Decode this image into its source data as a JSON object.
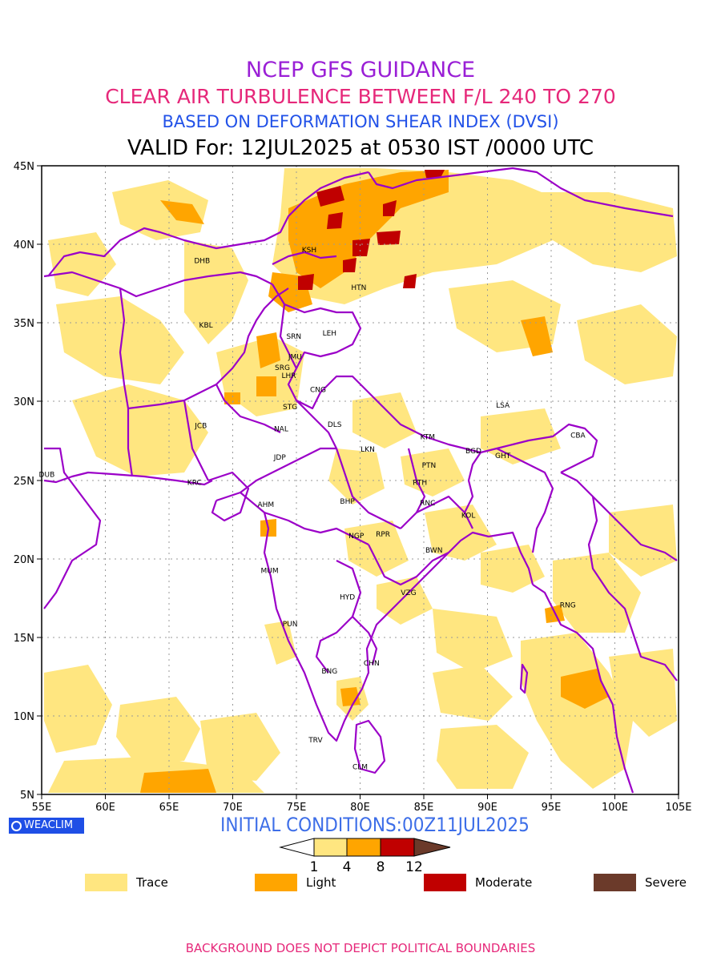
{
  "title": {
    "line1": "NCEP GFS GUIDANCE",
    "line2": "CLEAR AIR TURBULENCE BETWEEN F/L 240 TO 270",
    "line3": "BASED ON DEFORMATION SHEAR INDEX (DVSI)",
    "line4": "VALID For: 12JUL2025 at 0530 IST /0000 UTC"
  },
  "map": {
    "lon_range": [
      55,
      105
    ],
    "lat_range": [
      5,
      45
    ],
    "x_ticks": [
      "55E",
      "60E",
      "65E",
      "70E",
      "75E",
      "80E",
      "85E",
      "90E",
      "95E",
      "100E",
      "105E"
    ],
    "y_ticks": [
      "5N",
      "10N",
      "15N",
      "20N",
      "25N",
      "30N",
      "35N",
      "40N",
      "45N"
    ],
    "stations": [
      {
        "code": "KSH",
        "lon": 76.0,
        "lat": 39.5
      },
      {
        "code": "DHB",
        "lon": 67.6,
        "lat": 38.8
      },
      {
        "code": "HTN",
        "lon": 79.9,
        "lat": 37.1
      },
      {
        "code": "KBL",
        "lon": 67.9,
        "lat": 34.7
      },
      {
        "code": "LEH",
        "lon": 77.6,
        "lat": 34.2
      },
      {
        "code": "SRN",
        "lon": 74.8,
        "lat": 34.0
      },
      {
        "code": "JMU",
        "lon": 74.9,
        "lat": 32.7
      },
      {
        "code": "SRG",
        "lon": 73.9,
        "lat": 32.0
      },
      {
        "code": "LHR",
        "lon": 74.4,
        "lat": 31.5
      },
      {
        "code": "CNG",
        "lon": 76.7,
        "lat": 30.6
      },
      {
        "code": "LSA",
        "lon": 91.2,
        "lat": 29.6
      },
      {
        "code": "STG",
        "lon": 74.5,
        "lat": 29.5
      },
      {
        "code": "JCB",
        "lon": 67.5,
        "lat": 28.3
      },
      {
        "code": "NAL",
        "lon": 73.8,
        "lat": 28.1
      },
      {
        "code": "DLS",
        "lon": 78.0,
        "lat": 28.4
      },
      {
        "code": "KTM",
        "lon": 85.3,
        "lat": 27.6
      },
      {
        "code": "CBA",
        "lon": 97.1,
        "lat": 27.7
      },
      {
        "code": "LKN",
        "lon": 80.6,
        "lat": 26.8
      },
      {
        "code": "JDP",
        "lon": 73.7,
        "lat": 26.3
      },
      {
        "code": "BGD",
        "lon": 88.9,
        "lat": 26.7
      },
      {
        "code": "GHT",
        "lon": 91.2,
        "lat": 26.4
      },
      {
        "code": "PTN",
        "lon": 85.4,
        "lat": 25.8
      },
      {
        "code": "DUB",
        "lon": 55.4,
        "lat": 25.2
      },
      {
        "code": "KRC",
        "lon": 67.0,
        "lat": 24.7
      },
      {
        "code": "RTH",
        "lon": 84.7,
        "lat": 24.7
      },
      {
        "code": "AHM",
        "lon": 72.6,
        "lat": 23.3
      },
      {
        "code": "BHP",
        "lon": 79.0,
        "lat": 23.5
      },
      {
        "code": "RNC",
        "lon": 85.3,
        "lat": 23.4
      },
      {
        "code": "KOL",
        "lon": 88.5,
        "lat": 22.6
      },
      {
        "code": "NGP",
        "lon": 79.7,
        "lat": 21.3
      },
      {
        "code": "RPR",
        "lon": 81.8,
        "lat": 21.4
      },
      {
        "code": "BWN",
        "lon": 85.8,
        "lat": 20.4
      },
      {
        "code": "MUM",
        "lon": 72.9,
        "lat": 19.1
      },
      {
        "code": "HYD",
        "lon": 79.0,
        "lat": 17.4
      },
      {
        "code": "VZG",
        "lon": 83.8,
        "lat": 17.7
      },
      {
        "code": "RNG",
        "lon": 96.3,
        "lat": 16.9
      },
      {
        "code": "PUN",
        "lon": 74.5,
        "lat": 15.7
      },
      {
        "code": "CHN",
        "lon": 80.9,
        "lat": 13.2
      },
      {
        "code": "BNG",
        "lon": 77.6,
        "lat": 12.7
      },
      {
        "code": "TRV",
        "lon": 76.5,
        "lat": 8.3
      },
      {
        "code": "CLM",
        "lon": 80.0,
        "lat": 6.6
      }
    ]
  },
  "logo": "WEACLIM",
  "initial_conditions": "INITIAL CONDITIONS:00Z11JUL2025",
  "scale": {
    "ticks": [
      "1",
      "4",
      "8",
      "12"
    ],
    "colors": [
      "#ffe680",
      "#ffa500",
      "#c00000",
      "#6b3a2a"
    ]
  },
  "legend": [
    {
      "label": "Trace",
      "color": "#ffe680"
    },
    {
      "label": "Light",
      "color": "#ffa500"
    },
    {
      "label": "Moderate",
      "color": "#c00000"
    },
    {
      "label": "Severe",
      "color": "#6b3a2a"
    }
  ],
  "footer": "BACKGROUND DOES NOT DEPICT POLITICAL BOUNDARIES",
  "colors": {
    "border": "#9b00c8",
    "grid": "#999999"
  }
}
